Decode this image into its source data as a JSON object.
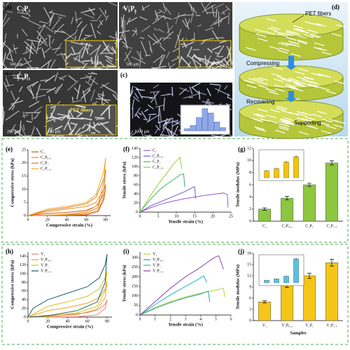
{
  "panels": {
    "a": {
      "label": "(a)",
      "left": {
        "tag": "C₁P₁",
        "scale": "500 μm",
        "inset_scale": "50 μm"
      },
      "right": {
        "tag": "V₁P₁",
        "scale": "500 μm",
        "inset_scale": "50 μm"
      }
    },
    "b": {
      "label": "(b)",
      "tag": "C₁P₁",
      "scale": "200 μm",
      "inset_scale": "100 μm",
      "note": "PET fibers"
    },
    "c": {
      "label": "(c)",
      "scale": "1000 μm",
      "histogram": [
        2,
        5,
        12,
        20,
        16,
        8,
        3
      ]
    },
    "d": {
      "label": "(d)",
      "fiber_note": "PET fibers",
      "steps": [
        "Compressing",
        "Recovering",
        "Supporting"
      ]
    }
  },
  "chart_data": [
    {
      "type": "line",
      "panel": "(e)",
      "xlabel": "Compressive strain (%)",
      "ylabel": "Compressive stress (kPa)",
      "xlim": [
        0,
        85
      ],
      "xticks": [
        0,
        20,
        40,
        60,
        80
      ],
      "ylim": [
        0,
        25
      ],
      "yticks": [
        0,
        5,
        10,
        15,
        20,
        25
      ],
      "series": [
        {
          "name": "C₁",
          "color": "#d9541e",
          "x": [
            0,
            20,
            40,
            60,
            70,
            78,
            80,
            78,
            72,
            60,
            40,
            5
          ],
          "values": [
            0,
            0.8,
            1.2,
            2,
            3.5,
            8,
            11,
            6,
            1.5,
            0.3,
            0.1,
            0
          ]
        },
        {
          "name": "C₁P₀.₅",
          "color": "#f08a24",
          "x": [
            0,
            20,
            40,
            60,
            70,
            78,
            80,
            78,
            72,
            60,
            40,
            5
          ],
          "values": [
            0,
            1.5,
            2.5,
            3.5,
            5,
            10,
            12,
            7,
            2,
            0.5,
            0.2,
            0
          ]
        },
        {
          "name": "C₁P₁",
          "color": "#c9822e",
          "x": [
            0,
            20,
            40,
            60,
            70,
            78,
            80,
            78,
            72,
            60,
            40,
            5
          ],
          "values": [
            0,
            2,
            3,
            4.5,
            7,
            14,
            17.5,
            10,
            3,
            1,
            0.3,
            0
          ]
        },
        {
          "name": "C₁P₁.₅",
          "color": "#f5a623",
          "x": [
            0,
            20,
            40,
            60,
            70,
            78,
            80,
            78,
            72,
            60,
            40,
            5
          ],
          "values": [
            0,
            2.5,
            3.5,
            5,
            8,
            17,
            22,
            13,
            4,
            1.5,
            0.5,
            0
          ]
        }
      ]
    },
    {
      "type": "line",
      "panel": "(f)",
      "xlabel": "Tensile strain (%)",
      "ylabel": "Tensile stress (kPa)",
      "xlim": [
        0,
        25
      ],
      "xticks": [
        0,
        5,
        10,
        15,
        20,
        25
      ],
      "ylim": [
        0,
        140
      ],
      "yticks": [
        0,
        20,
        40,
        60,
        80,
        100,
        120,
        140
      ],
      "series": [
        {
          "name": "C₁",
          "color": "#9b59d0",
          "x": [
            0,
            3,
            6,
            9,
            12,
            15,
            18,
            21,
            23,
            24,
            24.2
          ],
          "values": [
            0,
            10,
            18,
            24,
            29,
            33,
            37,
            40,
            42,
            38,
            10
          ]
        },
        {
          "name": "C₁P₀.₅",
          "color": "#6a5acd",
          "x": [
            0,
            3,
            6,
            9,
            12,
            14,
            15,
            15.3
          ],
          "values": [
            0,
            14,
            24,
            34,
            44,
            52,
            56,
            30
          ]
        },
        {
          "name": "C₁P₁",
          "color": "#3cb371",
          "x": [
            0,
            2,
            4,
            6,
            8,
            10,
            11,
            12,
            12.3
          ],
          "values": [
            0,
            20,
            38,
            53,
            65,
            76,
            82,
            84,
            55
          ]
        },
        {
          "name": "C₁P₁.₅",
          "color": "#9acd32",
          "x": [
            0,
            2,
            4,
            6,
            8,
            9,
            10,
            11,
            11.5
          ],
          "values": [
            0,
            25,
            50,
            72,
            92,
            104,
            112,
            120,
            95
          ]
        }
      ]
    },
    {
      "type": "bar",
      "panel": "(g)",
      "ylabel": "Tensile modulus (MPa)",
      "categories": [
        "C₁",
        "C₁P₀.₅",
        "C₁P₁",
        "C₁P₁.₅"
      ],
      "values": [
        2,
        3.8,
        6,
        9.6
      ],
      "errors": [
        0.2,
        0.3,
        0.25,
        0.35
      ],
      "color": "#8dc63f",
      "ylim": [
        0,
        12
      ],
      "yticks": [
        0,
        2,
        4,
        6,
        8,
        10,
        12
      ],
      "inset": {
        "values": [
          1.6,
          2.1,
          3.6,
          4.8
        ],
        "errors": [
          0.15,
          0.2,
          0.25,
          0.3
        ],
        "color": "#f2c40f",
        "ylim": [
          0,
          6
        ]
      }
    },
    {
      "type": "line",
      "panel": "(h)",
      "xlabel": "Compressive strain (%)",
      "ylabel": "Compressive stress (kPa)",
      "xlim": [
        0,
        85
      ],
      "xticks": [
        0,
        20,
        40,
        60,
        80
      ],
      "ylim": [
        0,
        150
      ],
      "yticks": [
        0,
        20,
        40,
        60,
        80,
        100,
        120,
        140
      ],
      "series": [
        {
          "name": "V₁",
          "color": "#f08080",
          "x": [
            0,
            20,
            40,
            60,
            72,
            78,
            80,
            78,
            70,
            50,
            20,
            2
          ],
          "values": [
            0,
            4,
            6,
            10,
            18,
            30,
            40,
            20,
            5,
            1,
            0,
            0
          ]
        },
        {
          "name": "V₁P₀.₅",
          "color": "#f0a020",
          "x": [
            0,
            20,
            40,
            60,
            72,
            78,
            80,
            78,
            70,
            50,
            20,
            2
          ],
          "values": [
            0,
            15,
            22,
            32,
            45,
            65,
            80,
            45,
            18,
            6,
            1,
            0
          ]
        },
        {
          "name": "V₁P₁",
          "color": "#d4c41e",
          "x": [
            0,
            20,
            40,
            60,
            72,
            78,
            80,
            78,
            70,
            50,
            20,
            2
          ],
          "values": [
            0,
            25,
            35,
            48,
            65,
            90,
            105,
            60,
            25,
            10,
            2,
            0
          ]
        },
        {
          "name": "V₁P₁.₅",
          "color": "#1b5e6b",
          "x": [
            0,
            5,
            20,
            40,
            60,
            72,
            78,
            80,
            78,
            70,
            50,
            20,
            2
          ],
          "values": [
            0,
            20,
            40,
            55,
            70,
            90,
            120,
            145,
            80,
            35,
            15,
            3,
            0
          ]
        }
      ]
    },
    {
      "type": "line",
      "panel": "(i)",
      "xlabel": "Tensile strain (%)",
      "ylabel": "Tensile stress (kPa)",
      "xlim": [
        0,
        6
      ],
      "xticks": [
        0,
        1,
        2,
        3,
        4,
        5,
        6
      ],
      "ylim": [
        0,
        330
      ],
      "yticks": [
        0,
        50,
        100,
        150,
        200,
        250,
        300
      ],
      "series": [
        {
          "name": "V₁",
          "color": "#b5d334",
          "x": [
            0,
            1,
            2,
            3,
            4,
            5,
            5.5,
            5.6
          ],
          "values": [
            0,
            40,
            70,
            95,
            115,
            130,
            140,
            95
          ]
        },
        {
          "name": "V₁P₀.₅",
          "color": "#2aa198",
          "x": [
            0,
            1,
            2,
            3,
            4,
            4.5,
            4.6
          ],
          "values": [
            0,
            35,
            65,
            90,
            110,
            125,
            70
          ]
        },
        {
          "name": "V₁P₁",
          "color": "#1fb5c9",
          "x": [
            0,
            1,
            2,
            3,
            3.8,
            4.2,
            4.4
          ],
          "values": [
            0,
            55,
            105,
            150,
            185,
            205,
            170
          ]
        },
        {
          "name": "V₁P₁.₅",
          "color": "#8e44ad",
          "x": [
            0,
            1,
            2,
            3,
            4,
            4.6,
            5,
            5.2,
            5.5
          ],
          "values": [
            0,
            70,
            140,
            200,
            250,
            285,
            305,
            310,
            240
          ]
        }
      ]
    },
    {
      "type": "bar",
      "panel": "(j)",
      "xlabel": "Samples",
      "ylabel": "Tensile modulus (MPa)",
      "categories": [
        "V₁",
        "V₁P₀.₅",
        "V₁P₁",
        "V₁P₁.₅"
      ],
      "values": [
        5,
        9.5,
        12,
        15.5
      ],
      "errors": [
        0.3,
        0.6,
        0.7,
        0.9
      ],
      "color": "#f5c518",
      "ylim": [
        0,
        18
      ],
      "yticks": [
        0,
        3,
        6,
        9,
        12,
        15,
        18
      ],
      "inset": {
        "values": [
          1,
          1.5,
          2.5,
          9
        ],
        "errors": [
          0.1,
          0.15,
          0.2,
          0.5
        ],
        "color": "#5bc0de",
        "ylim": [
          0,
          10
        ]
      }
    }
  ]
}
